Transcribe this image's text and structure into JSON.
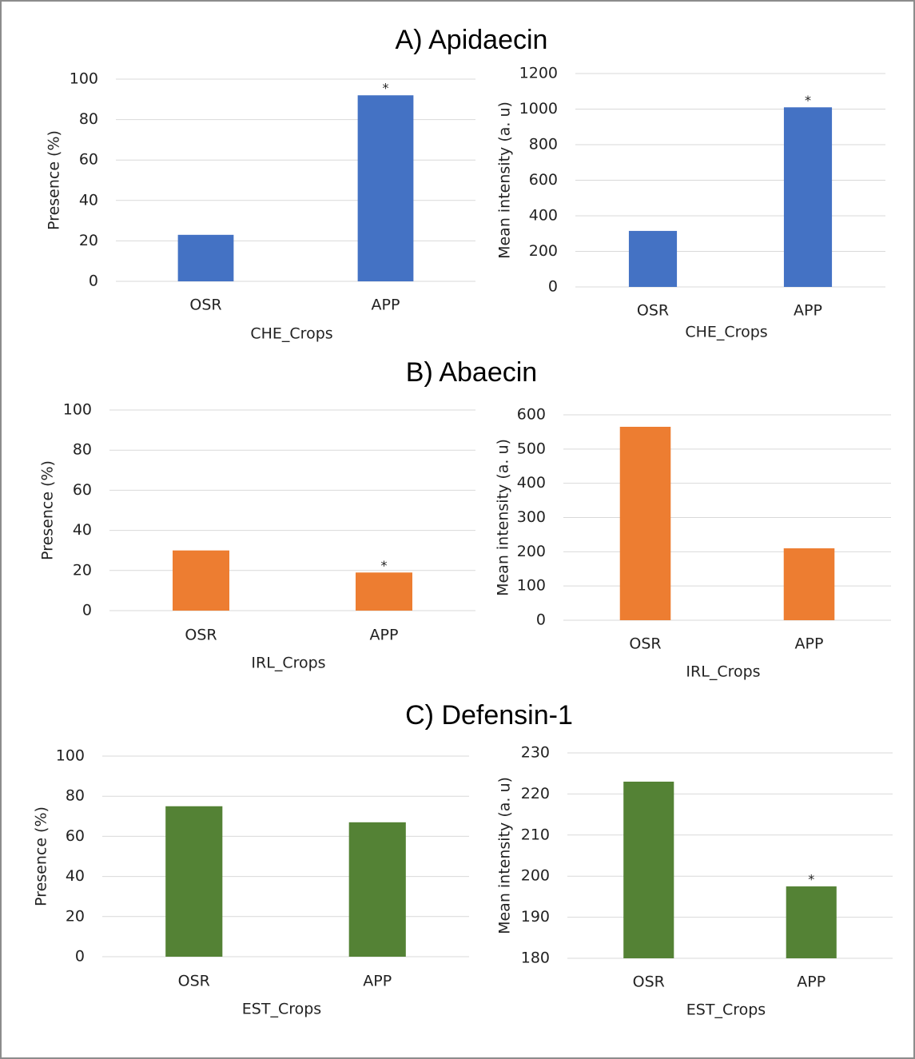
{
  "panel_titles": [
    "A) Apidaecin",
    "B) Abaecin",
    "C) Defensin-1"
  ],
  "chart_data": [
    {
      "type": "bar",
      "categories": [
        "OSR",
        "APP"
      ],
      "values": [
        23,
        92
      ],
      "annotations": [
        null,
        "*"
      ],
      "color": "#4472c4",
      "xlabel": "CHE_Crops",
      "ylabel": "Presence (%)",
      "ylim": [
        0,
        100
      ],
      "yticks": [
        0,
        20,
        40,
        60,
        80,
        100
      ],
      "grid": true
    },
    {
      "type": "bar",
      "categories": [
        "OSR",
        "APP"
      ],
      "values": [
        315,
        1010
      ],
      "annotations": [
        null,
        "*"
      ],
      "color": "#4472c4",
      "xlabel": "CHE_Crops",
      "ylabel": "Mean intensity (a. u)",
      "ylim": [
        0,
        1200
      ],
      "yticks": [
        0,
        200,
        400,
        600,
        800,
        1000,
        1200
      ],
      "grid": true
    },
    {
      "type": "bar",
      "categories": [
        "OSR",
        "APP"
      ],
      "values": [
        30,
        19
      ],
      "annotations": [
        null,
        "*"
      ],
      "color": "#ed7d31",
      "xlabel": "IRL_Crops",
      "ylabel": "Presence (%)",
      "ylim": [
        0,
        100
      ],
      "yticks": [
        0,
        20,
        40,
        60,
        80,
        100
      ],
      "grid": true
    },
    {
      "type": "bar",
      "categories": [
        "OSR",
        "APP"
      ],
      "values": [
        565,
        210
      ],
      "annotations": [
        null,
        null
      ],
      "color": "#ed7d31",
      "xlabel": "IRL_Crops",
      "ylabel": "Mean intensity (a. u)",
      "ylim": [
        0,
        600
      ],
      "yticks": [
        0,
        100,
        200,
        300,
        400,
        500,
        600
      ],
      "grid": true
    },
    {
      "type": "bar",
      "categories": [
        "OSR",
        "APP"
      ],
      "values": [
        75,
        67
      ],
      "annotations": [
        null,
        null
      ],
      "color": "#548235",
      "xlabel": "EST_Crops",
      "ylabel": "Presence (%)",
      "ylim": [
        0,
        100
      ],
      "yticks": [
        0,
        20,
        40,
        60,
        80,
        100
      ],
      "grid": true
    },
    {
      "type": "bar",
      "categories": [
        "OSR",
        "APP"
      ],
      "values": [
        223,
        197.5
      ],
      "annotations": [
        null,
        "*"
      ],
      "color": "#548235",
      "xlabel": "EST_Crops",
      "ylabel": "Mean intensity (a. u)",
      "ylim": [
        180,
        230
      ],
      "yticks": [
        180,
        190,
        200,
        210,
        220,
        230
      ],
      "grid": true
    }
  ]
}
